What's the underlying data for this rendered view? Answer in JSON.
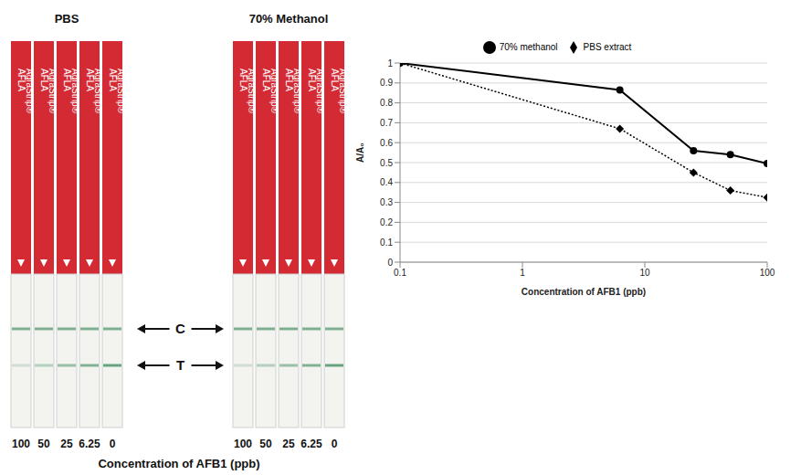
{
  "chart_data": {
    "type": "line",
    "x_label": "Concentration of AFB1 (ppb)",
    "y_label": "A/A₀",
    "x": [
      0.1,
      6.25,
      25,
      50,
      100
    ],
    "series": [
      {
        "name": "PBS extract",
        "color": "#000000",
        "marker": "diamond",
        "line_style": "dotted",
        "values": [
          1,
          0.67,
          0.45,
          0.36,
          0.325
        ]
      },
      {
        "name": "70% methanol",
        "color": "#000000",
        "marker": "circle",
        "line_style": "solid",
        "values": [
          1,
          0.865,
          0.56,
          0.54,
          0.495
        ]
      }
    ],
    "log": "x",
    "xlim": [
      0.1,
      100
    ],
    "xticks": [
      0.1,
      1,
      10,
      100
    ],
    "ylim": [
      0,
      1
    ],
    "yticks": [
      0,
      0.1,
      0.2,
      0.3,
      0.4,
      0.5,
      0.6,
      0.7,
      0.8,
      0.9,
      1
    ],
    "grid": true,
    "legend": "top"
  },
  "strip_panel": {
    "panels": [
      {
        "title": "PBS",
        "concentrations": [
          "100",
          "50",
          "25",
          "6.25",
          "0"
        ]
      },
      {
        "title": "70% Methanol",
        "concentrations": [
          "100",
          "50",
          "25",
          "6.25",
          "0"
        ]
      }
    ],
    "brand": "AgraStrip®",
    "product": "AFLA",
    "control_label": "C",
    "test_label": "T",
    "axis_label": "Concentration of AFB1 (ppb)"
  }
}
